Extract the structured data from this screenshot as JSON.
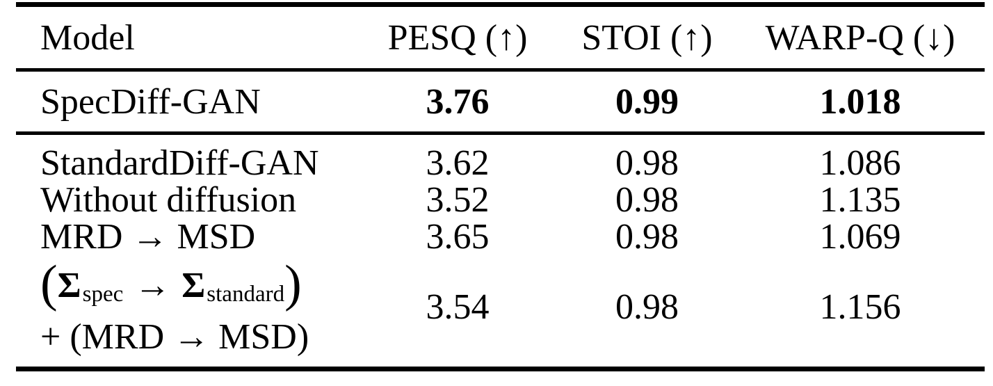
{
  "colors": {
    "text": "#000000",
    "background": "#ffffff",
    "rule": "#000000"
  },
  "table": {
    "columns": [
      "Model",
      "PESQ (↑)",
      "STOI (↑)",
      "WARP-Q (↓)"
    ],
    "highlight_row": {
      "model": "SpecDiff-GAN",
      "values": [
        "3.76",
        "0.99",
        "1.018"
      ]
    },
    "ablation_rows": [
      {
        "model": "StandardDiff-GAN",
        "values": [
          "3.62",
          "0.98",
          "1.086"
        ]
      },
      {
        "model": "Without diffusion",
        "values": [
          "3.52",
          "0.98",
          "1.135"
        ]
      },
      {
        "model": "MRD → MSD",
        "values": [
          "3.65",
          "0.98",
          "1.069"
        ]
      }
    ],
    "math_row": {
      "line1": {
        "open": "(",
        "sigma1": "Σ",
        "sub1": "spec",
        "arrow": "→",
        "sigma2": "Σ",
        "sub2": "standard",
        "close": ")"
      },
      "line2": "+ (MRD → MSD)",
      "values": [
        "3.54",
        "0.98",
        "1.156"
      ]
    }
  }
}
